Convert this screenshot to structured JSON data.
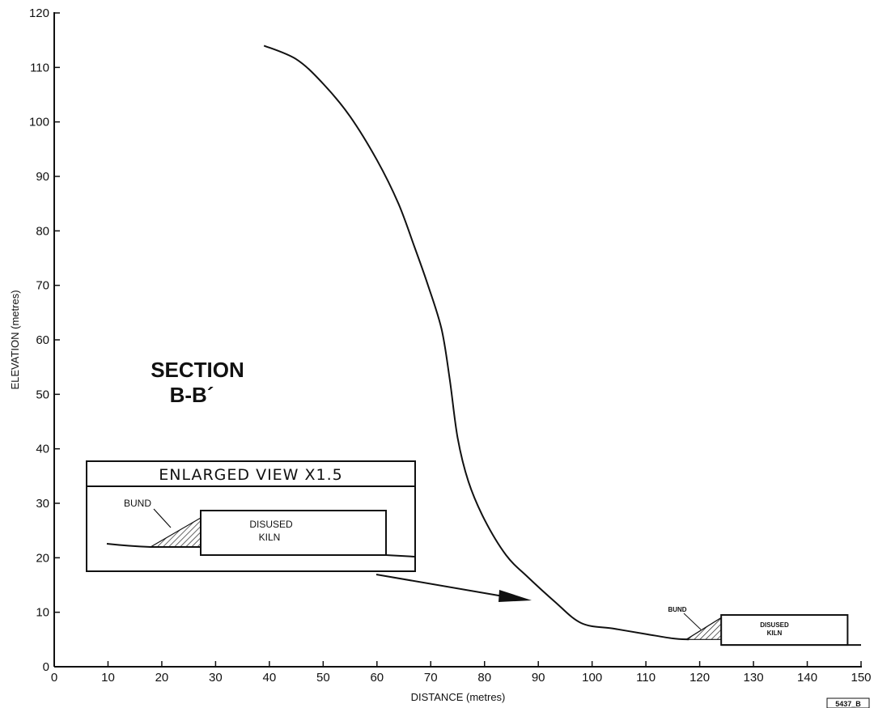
{
  "title": {
    "line1": "SECTION",
    "line2": "B-B´"
  },
  "chart_data": {
    "type": "line",
    "xlabel": "DISTANCE (metres)",
    "ylabel": "ELEVATION (metres)",
    "xlim": [
      0,
      150
    ],
    "ylim": [
      0,
      120
    ],
    "x_ticks": [
      0,
      10,
      20,
      30,
      40,
      50,
      60,
      70,
      80,
      90,
      100,
      110,
      120,
      130,
      140,
      150
    ],
    "y_ticks": [
      0,
      10,
      20,
      30,
      40,
      50,
      60,
      70,
      80,
      90,
      100,
      110,
      120
    ],
    "grid": false,
    "series": [
      {
        "values_xy": [
          [
            39,
            114
          ],
          [
            45,
            111.5
          ],
          [
            50,
            107
          ],
          [
            55,
            101
          ],
          [
            60,
            93
          ],
          [
            64,
            85
          ],
          [
            67,
            77
          ],
          [
            69.5,
            70
          ],
          [
            72,
            62
          ],
          [
            73.5,
            53
          ],
          [
            75,
            42
          ],
          [
            77,
            34
          ],
          [
            80,
            27
          ],
          [
            84,
            20.5
          ],
          [
            88,
            16.5
          ],
          [
            93,
            12
          ],
          [
            98,
            8
          ],
          [
            104,
            7
          ],
          [
            110,
            6
          ],
          [
            115,
            5.2
          ],
          [
            118,
            5
          ]
        ]
      }
    ],
    "bund": {
      "x": [
        117.5,
        124
      ],
      "top_elevation": 9,
      "base_elevation": 5
    },
    "kiln": {
      "x": [
        124,
        147.5
      ],
      "y": [
        4,
        9.5
      ],
      "label": "DISUSED KILN"
    },
    "ground_extension": {
      "x": [
        124,
        150
      ],
      "elevation": 4
    }
  },
  "inset": {
    "title": "ENLARGED VIEW X1.5",
    "bund_label": "BUND",
    "kiln_label_line1": "DISUSED",
    "kiln_label_line2": "KILN"
  },
  "main_annotations": {
    "bund_label": "BUND",
    "kiln_label_line1": "DISUSED",
    "kiln_label_line2": "KILN"
  },
  "drawing_ref": "5437_B"
}
